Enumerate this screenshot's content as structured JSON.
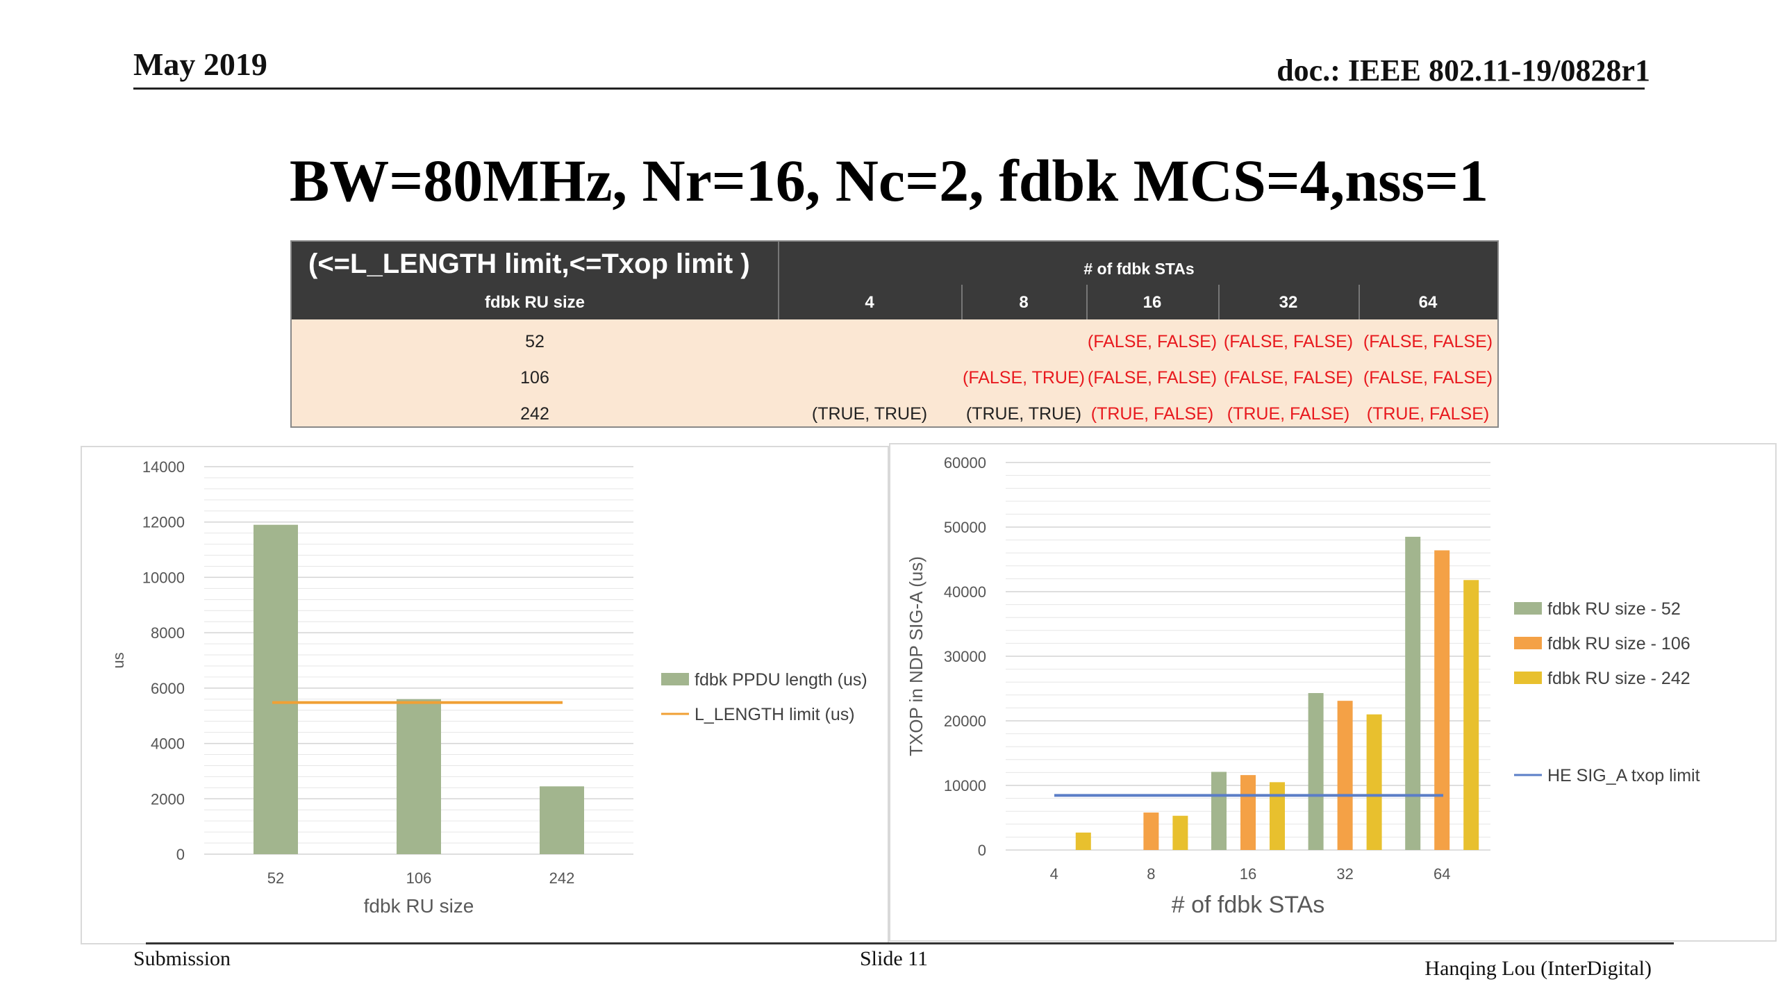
{
  "header": {
    "date": "May 2019",
    "doc": "doc.: IEEE 802.11-19/0828r1"
  },
  "title": "BW=80MHz, Nr=16, Nc=2, fdbk MCS=4,nss=1",
  "table": {
    "corner_label": "(<=L_LENGTH limit,<=Txop limit )",
    "group_header": "# of fdbk STAs",
    "row_header": "fdbk RU size",
    "columns": [
      "4",
      "8",
      "16",
      "32",
      "64"
    ],
    "rows": [
      {
        "label": "52",
        "cells": [
          "",
          "",
          "(FALSE, FALSE)",
          "(FALSE, FALSE)",
          "(FALSE, FALSE)"
        ]
      },
      {
        "label": "106",
        "cells": [
          "",
          "(FALSE, TRUE)",
          "(FALSE, FALSE)",
          "(FALSE, FALSE)",
          "(FALSE, FALSE)"
        ]
      },
      {
        "label": "242",
        "cells": [
          "(TRUE, TRUE)",
          "(TRUE, TRUE)",
          "(TRUE, FALSE)",
          "(TRUE, FALSE)",
          "(TRUE, FALSE)"
        ]
      }
    ],
    "colors": {
      "true_text": "#222222",
      "false_text": "#e8191e",
      "header_bg": "#3a3a3a",
      "body_bg": "#fbe7d3"
    }
  },
  "chart_data": [
    {
      "type": "bar",
      "categories": [
        "52",
        "106",
        "242"
      ],
      "series": [
        {
          "name": "fdbk PPDU length (us)",
          "values": [
            11900,
            5600,
            2450
          ],
          "color": "#a2b58e"
        }
      ],
      "lines": [
        {
          "name": "L_LENGTH limit (us)",
          "value": 5480,
          "color": "#f0a035"
        }
      ],
      "xlabel": "fdbk RU size",
      "ylabel": "us",
      "ylim": [
        0,
        14000
      ],
      "yticks": [
        0,
        2000,
        4000,
        6000,
        8000,
        10000,
        12000,
        14000
      ],
      "grid": true,
      "legend": "right"
    },
    {
      "type": "bar",
      "categories": [
        "4",
        "8",
        "16",
        "32",
        "64"
      ],
      "series": [
        {
          "name": "fdbk RU size - 52",
          "values": [
            null,
            null,
            12100,
            24300,
            48500
          ],
          "color": "#a2b58e"
        },
        {
          "name": "fdbk RU size - 106",
          "values": [
            null,
            5800,
            11600,
            23100,
            46400
          ],
          "color": "#f4a146"
        },
        {
          "name": "fdbk RU size - 242",
          "values": [
            2700,
            5300,
            10500,
            21000,
            41800
          ],
          "color": "#e8c02e"
        }
      ],
      "lines": [
        {
          "name": "HE SIG_A txop limit",
          "value": 8448,
          "color": "#5b7ec7"
        }
      ],
      "xlabel": "# of fdbk STAs",
      "ylabel": "TXOP in NDP SIG-A (us)",
      "ylim": [
        0,
        60000
      ],
      "yticks": [
        0,
        10000,
        20000,
        30000,
        40000,
        50000,
        60000
      ],
      "grid": true,
      "legend": "right"
    }
  ],
  "footer": {
    "left": "Submission",
    "center": "Slide 11",
    "right": "Hanqing Lou (InterDigital)"
  }
}
